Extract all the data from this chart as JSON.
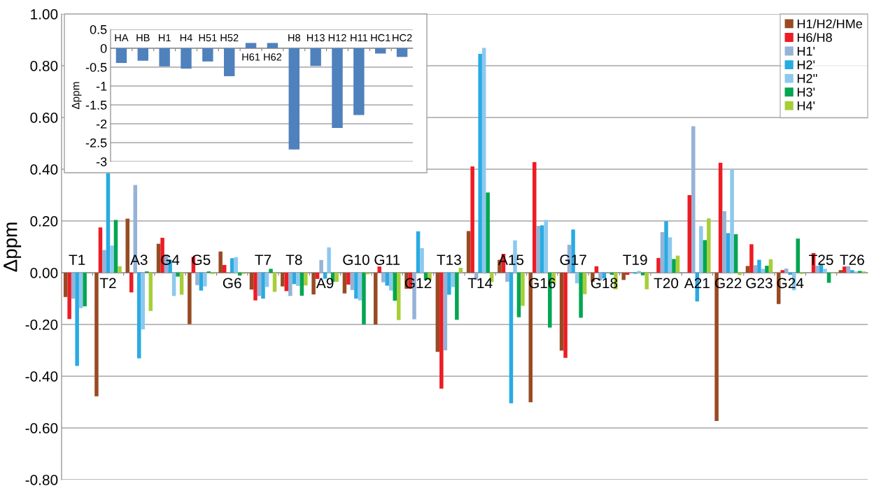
{
  "chart_data": [
    {
      "type": "bar",
      "ylabel": "Δppm",
      "categories": [
        "T1",
        "T2",
        "A3",
        "G4",
        "G5",
        "G6",
        "T7",
        "T8",
        "A9",
        "G10",
        "G11",
        "G12",
        "T13",
        "T14",
        "A15",
        "G16",
        "G17",
        "G18",
        "T19",
        "T20",
        "A21",
        "G22",
        "G23",
        "G24",
        "T25",
        "T26"
      ],
      "series": [
        {
          "name": "H1/H2/HMe",
          "color": "#984b23",
          "values": [
            -0.094,
            -0.478,
            0.209,
            0.112,
            -0.199,
            0.082,
            -0.065,
            -0.053,
            -0.084,
            -0.08,
            -0.2,
            -0.062,
            -0.306,
            0.161,
            0.05,
            -0.501,
            -0.301,
            -0.035,
            -0.028,
            0,
            0,
            -0.573,
            0.026,
            -0.121,
            0,
            0.01
          ]
        },
        {
          "name": "H6/H8",
          "color": "#ed1c24",
          "values": [
            -0.179,
            0.175,
            -0.076,
            0.135,
            0.061,
            0.03,
            -0.107,
            -0.071,
            -0.024,
            -0.046,
            0.024,
            -0.062,
            -0.448,
            0.411,
            0.073,
            0.428,
            -0.329,
            0.025,
            -0.008,
            0.057,
            0.3,
            0.425,
            0.11,
            0.01,
            0.076,
            0.024
          ]
        },
        {
          "name": "H1'",
          "color": "#95b3d7",
          "values": [
            -0.1,
            0.088,
            0.339,
            0.07,
            -0.048,
            0,
            -0.09,
            -0.09,
            0.049,
            -0.067,
            -0.037,
            -0.18,
            -0.3,
            -0.028,
            -0.035,
            0.181,
            0.108,
            -0.03,
            0,
            0.157,
            0.566,
            0.238,
            0.029,
            0.016,
            0.027,
            0.025
          ]
        },
        {
          "name": "H2'",
          "color": "#29abe2",
          "values": [
            -0.36,
            0.385,
            -0.331,
            0.05,
            -0.069,
            0.056,
            -0.1,
            -0.044,
            -0.023,
            -0.1,
            -0.05,
            0.16,
            -0.085,
            0.846,
            -0.505,
            0.183,
            0.167,
            -0.022,
            -0.004,
            0.199,
            -0.111,
            0.153,
            0.05,
            -0.008,
            0.033,
            0.01
          ]
        },
        {
          "name": "H2''",
          "color": "#8dc8ee",
          "values": [
            -0.137,
            0.105,
            -0.219,
            -0.09,
            -0.053,
            0.06,
            -0.055,
            -0.051,
            0.098,
            -0.107,
            -0.069,
            0.095,
            -0.055,
            0.869,
            0.125,
            0.204,
            -0.041,
            0,
            0.007,
            0.137,
            0.18,
            0.399,
            0.015,
            -0.068,
            0.015,
            0.005
          ]
        },
        {
          "name": "H3'",
          "color": "#00a651",
          "values": [
            -0.13,
            0.204,
            0.005,
            -0.015,
            0.005,
            -0.011,
            0.015,
            -0.089,
            -0.035,
            -0.2,
            -0.108,
            -0.028,
            -0.182,
            0.31,
            -0.172,
            -0.212,
            -0.174,
            -0.008,
            -0.01,
            0.053,
            0.126,
            0.149,
            0.027,
            0.132,
            -0.039,
            0.007
          ]
        },
        {
          "name": "H4'",
          "color": "#a6ce39",
          "values": [
            0,
            0.025,
            -0.148,
            -0.085,
            -0.005,
            -0.005,
            -0.074,
            -0.049,
            -0.035,
            -0.006,
            -0.183,
            -0.028,
            0.019,
            -0.036,
            -0.128,
            -0.042,
            -0.083,
            -0.064,
            -0.064,
            0.066,
            0.21,
            -0.009,
            0.052,
            -0.005,
            0.003,
            0.005
          ]
        }
      ],
      "ylim": [
        -0.8,
        1.0
      ],
      "yticks": [
        {
          "value": 1.0,
          "label": "1.00"
        },
        {
          "value": 0.8,
          "label": "0.80"
        },
        {
          "value": 0.6,
          "label": "0.60"
        },
        {
          "value": 0.4,
          "label": "0.40"
        },
        {
          "value": 0.2,
          "label": "0.20"
        },
        {
          "value": 0,
          "label": "0.00"
        },
        {
          "value": -0.2,
          "label": "-0.20"
        },
        {
          "value": -0.4,
          "label": "-0.40"
        },
        {
          "value": -0.6,
          "label": "-0.60"
        },
        {
          "value": -0.8,
          "label": "-0.80"
        }
      ],
      "grid": "y",
      "legend": "top right"
    },
    {
      "type": "bar",
      "ylabel": "Δppm",
      "categories": [
        "HA",
        "HB",
        "H1",
        "H4",
        "H51",
        "H52",
        "H61",
        "H62",
        "H8",
        "H13",
        "H12",
        "H11",
        "HC1",
        "HC2"
      ],
      "values": [
        -0.39,
        -0.33,
        -0.48,
        -0.54,
        -0.35,
        -0.74,
        0.14,
        0.14,
        -2.68,
        -0.47,
        -2.11,
        -1.77,
        -0.14,
        -0.23
      ],
      "color": "#4f81bd",
      "ylim": [
        -3,
        0.5
      ],
      "yticks": [
        0.5,
        0,
        -0.5,
        -1,
        -1.5,
        -2,
        -2.5,
        -3
      ],
      "grid": "y"
    }
  ]
}
